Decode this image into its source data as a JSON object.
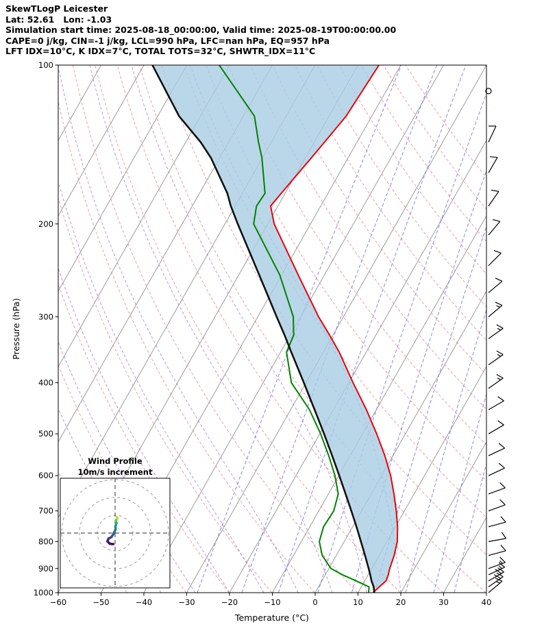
{
  "header": {
    "line1": "SkewTLogP Leicester",
    "line2": "Lat: 52.61   Lon: -1.03",
    "line3": "Simulation start time: 2025-08-18_00:00:00, Valid time: 2025-08-19T00:00:00.00",
    "line4": "CAPE=0 j/kg, CIN=-1 j/kg, LCL=990 hPa, LFC=nan hPa, EQ=957 hPa",
    "line5": "LFT IDX=10°C, K IDX=7°C, TOTAL TOTS=32°C, SHWTR_IDX=11°C"
  },
  "axes": {
    "xlabel": "Temperature (°C)",
    "ylabel": "Pressure (hPa)",
    "x_ticks": [
      -60,
      -50,
      -40,
      -30,
      -20,
      -10,
      0,
      10,
      20,
      30,
      40
    ],
    "y_ticks": [
      100,
      200,
      300,
      400,
      500,
      600,
      700,
      800,
      900,
      1000
    ],
    "x_range": [
      -60,
      40
    ],
    "p_range": [
      100,
      1000
    ]
  },
  "inset": {
    "title1": "Wind Profile",
    "title2": "10m/s increment",
    "ring_increment_ms": 10
  },
  "style": {
    "temperature": "#e8000b",
    "dewpoint": "#008000",
    "parcel": "#111111",
    "shade": "#a9cde4",
    "isotherm": "#9b9b9b",
    "dry_adiabat": "#e57f7f",
    "moist_adiabat": "#b478c8",
    "mixing_line": "#6a6add",
    "barb": "#000000"
  },
  "chart_data": {
    "type": "skewt-logp",
    "title": "SkewTLogP Leicester",
    "skew_deg_per_decade": 70,
    "pressure_hPa": [
      1000,
      975,
      950,
      925,
      900,
      850,
      800,
      750,
      700,
      650,
      600,
      550,
      500,
      450,
      400,
      350,
      325,
      300,
      250,
      200,
      185,
      175,
      150,
      140,
      125,
      100
    ],
    "temperature_C": [
      13.5,
      14.2,
      15.0,
      14.7,
      14.2,
      13.5,
      12.4,
      10.5,
      8.1,
      5.3,
      2.1,
      -1.9,
      -6.7,
      -12.3,
      -19.0,
      -26.3,
      -30.8,
      -35.8,
      -46.1,
      -58.5,
      -61.7,
      -60.9,
      -58.6,
      -57.6,
      -56.0,
      -55.1
    ],
    "dewpoint_C": [
      12.5,
      11.8,
      8.0,
      4.0,
      0.5,
      -3.3,
      -5.8,
      -6.8,
      -6.5,
      -7.7,
      -10.9,
      -15.0,
      -19.8,
      -25.6,
      -33.4,
      -38.6,
      -39.2,
      -41.7,
      -50.4,
      -63.3,
      -65.0,
      -64.7,
      -70.1,
      -73.0,
      -77.4,
      -92.4
    ],
    "parcel_C": [
      13.8,
      12.9,
      11.6,
      10.5,
      9.3,
      6.7,
      3.9,
      0.9,
      -2.4,
      -6.0,
      -9.9,
      -14.2,
      -19.0,
      -24.4,
      -30.5,
      -37.5,
      -41.3,
      -45.6,
      -55.2,
      -67.0,
      -71.0,
      -73.5,
      -82.0,
      -86.5,
      -95.0,
      -108.0
    ],
    "mixing_ratios_gkg": [
      0.4,
      1,
      2,
      4,
      7,
      10,
      16,
      24,
      32
    ],
    "indices": {
      "CAPE_jkg": 0,
      "CIN_jkg": -1,
      "LCL_hPa": 990,
      "LFC_hPa": "nan",
      "EQ_hPa": 957,
      "LFT_IDX_C": 10,
      "K_IDX_C": 7,
      "TOTAL_TOTS_C": 32,
      "SHWTR_IDX_C": 11
    },
    "winds": [
      {
        "p": 112,
        "dir_deg": 0,
        "speed": 0
      },
      {
        "p": 140,
        "dir_deg": 25,
        "speed": 10
      },
      {
        "p": 160,
        "dir_deg": 30,
        "speed": 10
      },
      {
        "p": 185,
        "dir_deg": 35,
        "speed": 12
      },
      {
        "p": 210,
        "dir_deg": 40,
        "speed": 12
      },
      {
        "p": 240,
        "dir_deg": 45,
        "speed": 10
      },
      {
        "p": 270,
        "dir_deg": 50,
        "speed": 12
      },
      {
        "p": 300,
        "dir_deg": 50,
        "speed": 15
      },
      {
        "p": 330,
        "dir_deg": 55,
        "speed": 15
      },
      {
        "p": 370,
        "dir_deg": 55,
        "speed": 13
      },
      {
        "p": 410,
        "dir_deg": 55,
        "speed": 13
      },
      {
        "p": 450,
        "dir_deg": 60,
        "speed": 12
      },
      {
        "p": 500,
        "dir_deg": 60,
        "speed": 10
      },
      {
        "p": 550,
        "dir_deg": 65,
        "speed": 10
      },
      {
        "p": 600,
        "dir_deg": 65,
        "speed": 12
      },
      {
        "p": 650,
        "dir_deg": 70,
        "speed": 10
      },
      {
        "p": 700,
        "dir_deg": 70,
        "speed": 10
      },
      {
        "p": 750,
        "dir_deg": 75,
        "speed": 9
      },
      {
        "p": 800,
        "dir_deg": 80,
        "speed": 10
      },
      {
        "p": 850,
        "dir_deg": 75,
        "speed": 10
      },
      {
        "p": 900,
        "dir_deg": 70,
        "speed": 14
      },
      {
        "p": 925,
        "dir_deg": 65,
        "speed": 16
      },
      {
        "p": 950,
        "dir_deg": 60,
        "speed": 18
      },
      {
        "p": 975,
        "dir_deg": 55,
        "speed": 20
      },
      {
        "p": 1000,
        "dir_deg": 50,
        "speed": 15
      }
    ],
    "hodograph_uv": [
      {
        "u": -1.0,
        "v": -6.2,
        "color": "#440154"
      },
      {
        "u": -3.0,
        "v": -6.0,
        "color": "#46085c"
      },
      {
        "u": -4.3,
        "v": -4.6,
        "color": "#471063"
      },
      {
        "u": -3.6,
        "v": -3.0,
        "color": "#481d6f"
      },
      {
        "u": -2.2,
        "v": -2.4,
        "color": "#453581"
      },
      {
        "u": -1.2,
        "v": -1.0,
        "color": "#3d4e8a"
      },
      {
        "u": -0.4,
        "v": 0.6,
        "color": "#34618d"
      },
      {
        "u": 0.3,
        "v": 2.2,
        "color": "#2b748e"
      },
      {
        "u": 0.2,
        "v": 4.0,
        "color": "#23868e"
      },
      {
        "u": 0.8,
        "v": 5.6,
        "color": "#1f988b"
      },
      {
        "u": 0.4,
        "v": 7.0,
        "color": "#2eb37c"
      },
      {
        "u": 1.2,
        "v": 8.2,
        "color": "#6ccd5a"
      },
      {
        "u": 1.0,
        "v": 9.0,
        "color": "#b8de29"
      }
    ]
  }
}
